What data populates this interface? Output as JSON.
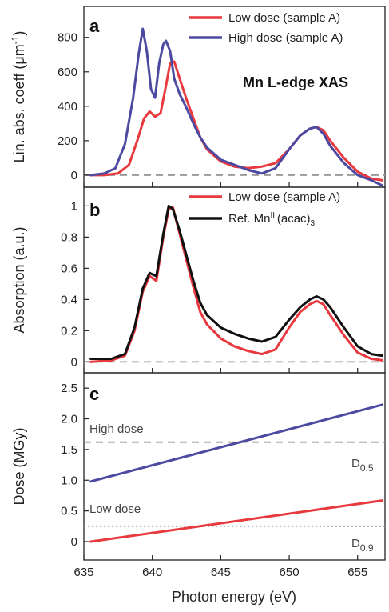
{
  "chart_data": [
    {
      "panel": "a",
      "type": "line",
      "ylabel": "Lin. abs. coeff (μm⁻¹)",
      "xlim": [
        635,
        657
      ],
      "ylim": [
        -70,
        980
      ],
      "yticks": [
        0,
        200,
        400,
        600,
        800
      ],
      "annotation": "Mn L-edge XAS",
      "legend_position": "top-right",
      "zero_line": "dashed",
      "series": [
        {
          "name": "Low dose (sample A)",
          "color": "#e8393f",
          "x": [
            635.5,
            636.5,
            637.5,
            638.3,
            638.9,
            639.4,
            639.8,
            640.2,
            640.6,
            641.0,
            641.3,
            641.6,
            642.0,
            642.5,
            643.0,
            643.5,
            644.0,
            645.0,
            646.0,
            647.0,
            648.0,
            649.0,
            650.0,
            650.8,
            651.5,
            652.0,
            652.5,
            653.0,
            654.0,
            655.0,
            656.0,
            656.8
          ],
          "y": [
            0,
            0,
            10,
            60,
            200,
            330,
            370,
            340,
            360,
            520,
            650,
            660,
            560,
            440,
            330,
            220,
            150,
            80,
            50,
            40,
            50,
            70,
            150,
            230,
            270,
            280,
            260,
            200,
            100,
            20,
            -20,
            -30
          ]
        },
        {
          "name": "High dose (sample A)",
          "color": "#4b4aa0",
          "x": [
            635.5,
            636.5,
            637.3,
            638.0,
            638.6,
            639.0,
            639.3,
            639.6,
            639.9,
            640.2,
            640.5,
            640.8,
            641.0,
            641.3,
            641.6,
            642.0,
            642.5,
            643.0,
            643.5,
            644.0,
            645.0,
            646.0,
            647.0,
            648.0,
            649.0,
            650.0,
            650.8,
            651.5,
            652.0,
            652.5,
            653.0,
            654.0,
            655.0,
            656.0,
            656.8
          ],
          "y": [
            0,
            10,
            40,
            180,
            450,
            700,
            850,
            720,
            500,
            450,
            650,
            760,
            780,
            720,
            560,
            470,
            390,
            300,
            220,
            160,
            90,
            60,
            30,
            10,
            40,
            150,
            230,
            270,
            280,
            240,
            170,
            70,
            0,
            -30,
            -60
          ]
        }
      ]
    },
    {
      "panel": "b",
      "type": "line",
      "ylabel": "Absorption (a.u.)",
      "xlim": [
        635,
        657
      ],
      "ylim": [
        -0.07,
        1.12
      ],
      "yticks": [
        0,
        0.2,
        0.4,
        0.6,
        0.8,
        1
      ],
      "legend_position": "top-right",
      "zero_line": "dashed",
      "series": [
        {
          "name": "Low dose (sample A)",
          "color": "#e8393f",
          "x": [
            635.5,
            637.0,
            638.0,
            638.7,
            639.3,
            639.8,
            640.3,
            640.8,
            641.2,
            641.5,
            642.0,
            642.5,
            643.0,
            643.5,
            644.0,
            645.0,
            646.0,
            647.0,
            648.0,
            649.0,
            650.0,
            650.8,
            651.5,
            652.0,
            652.5,
            653.0,
            654.0,
            655.0,
            656.0,
            656.8
          ],
          "y": [
            0,
            0.01,
            0.04,
            0.2,
            0.45,
            0.55,
            0.52,
            0.8,
            0.98,
            0.99,
            0.82,
            0.65,
            0.48,
            0.32,
            0.24,
            0.15,
            0.1,
            0.07,
            0.05,
            0.08,
            0.22,
            0.32,
            0.37,
            0.39,
            0.37,
            0.3,
            0.17,
            0.06,
            0.02,
            0.01
          ]
        },
        {
          "name": "Ref. MnIII(acac)3",
          "color": "#111111",
          "x": [
            635.5,
            637.0,
            638.0,
            638.7,
            639.3,
            639.8,
            640.3,
            640.8,
            641.2,
            641.5,
            642.0,
            642.5,
            643.0,
            643.5,
            644.0,
            645.0,
            646.0,
            647.0,
            648.0,
            649.0,
            650.0,
            650.8,
            651.5,
            652.0,
            652.5,
            653.0,
            654.0,
            655.0,
            656.0,
            656.8
          ],
          "y": [
            0.02,
            0.02,
            0.05,
            0.22,
            0.47,
            0.57,
            0.55,
            0.82,
            1.0,
            0.98,
            0.84,
            0.68,
            0.52,
            0.38,
            0.3,
            0.22,
            0.18,
            0.15,
            0.13,
            0.16,
            0.27,
            0.35,
            0.4,
            0.42,
            0.4,
            0.35,
            0.22,
            0.1,
            0.05,
            0.04
          ]
        }
      ]
    },
    {
      "panel": "c",
      "type": "line",
      "ylabel": "Dose (MGy)",
      "xlabel": "Photon energy (eV)",
      "xlim": [
        635,
        657
      ],
      "ylim": [
        -0.3,
        2.75
      ],
      "yticks": [
        0,
        0.5,
        1.0,
        1.5,
        2.0,
        2.5
      ],
      "xticks": [
        635,
        640,
        645,
        650,
        655
      ],
      "series": [
        {
          "color": "#4b4aa0",
          "x": [
            635.5,
            656.8
          ],
          "y": [
            0.98,
            2.23
          ]
        },
        {
          "color": "#e8393f",
          "x": [
            635.5,
            656.8
          ],
          "y": [
            0.0,
            0.67
          ]
        }
      ],
      "reference_lines": [
        {
          "label": "High dose",
          "marker": "D",
          "subscript": "0.5",
          "y": 1.62,
          "style": "dashed"
        },
        {
          "label": "Low dose",
          "marker": "D",
          "subscript": "0.9",
          "y": 0.25,
          "style": "dotted"
        }
      ]
    }
  ],
  "text": {
    "panel_a_letter": "a",
    "panel_b_letter": "b",
    "panel_c_letter": "c",
    "ylabel_a_main": "Lin. abs. coeff (μm",
    "ylabel_a_sup": "-1",
    "ylabel_a_close": ")",
    "ylabel_b": "Absorption (a.u.)",
    "ylabel_c": "Dose (MGy)",
    "xlabel": "Photon energy (eV)",
    "annotation_a": "Mn L-edge XAS",
    "legend_a_1": "Low dose (sample A)",
    "legend_a_2": "High dose (sample A)",
    "legend_b_1": "Low dose (sample A)",
    "legend_b_2_main": "Ref. Mn",
    "legend_b_2_sup": "III",
    "legend_b_2_mid": "(acac)",
    "legend_b_2_sub": "3",
    "high_dose_label": "High dose",
    "low_dose_label": "Low dose",
    "d05_main": "D",
    "d05_sub": "0.5",
    "d09_main": "D",
    "d09_sub": "0.9"
  }
}
